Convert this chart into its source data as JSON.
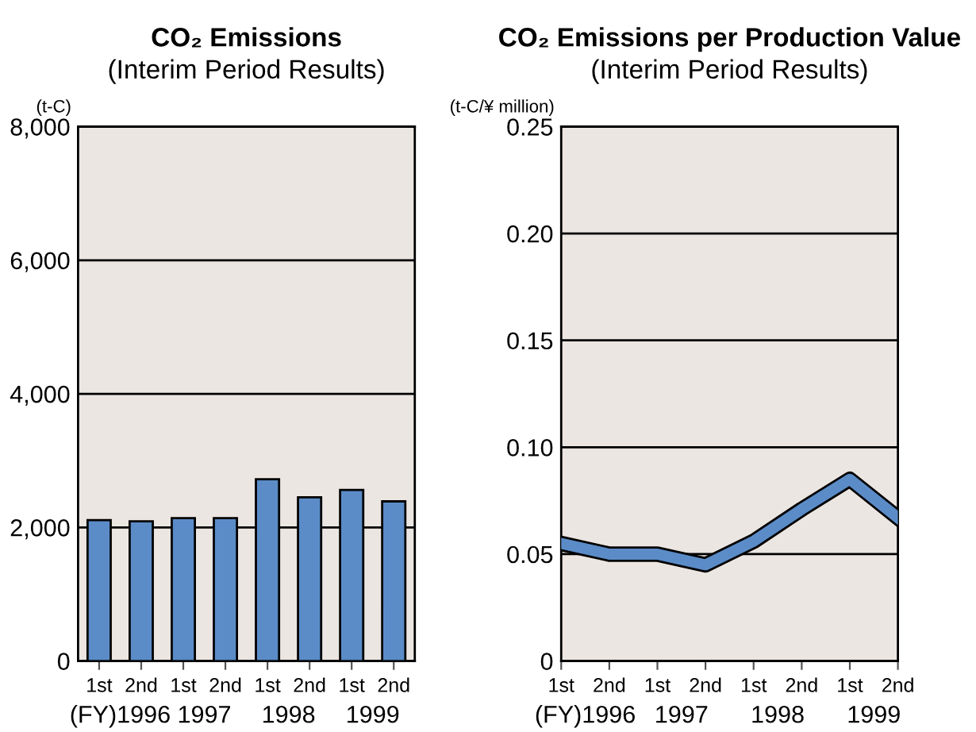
{
  "chart_data": [
    {
      "type": "bar",
      "title": "CO₂ Emissions",
      "subtitle": "(Interim Period Results)",
      "ylabel": "(t-C)",
      "categories": [
        "1st",
        "2nd",
        "1st",
        "2nd",
        "1st",
        "2nd",
        "1st",
        "2nd"
      ],
      "values": [
        2110,
        2090,
        2140,
        2140,
        2720,
        2450,
        2560,
        2390
      ],
      "color": "#5b8cc8",
      "ylim": [
        0,
        8000
      ],
      "yticks": [
        0,
        {
          "value": 2000,
          "label": "2,000"
        },
        {
          "value": 4000,
          "label": "4,000"
        },
        {
          "value": 6000,
          "label": "6,000"
        },
        {
          "value": 8000,
          "label": "8,000"
        }
      ],
      "grid": "y",
      "annotations": [
        "(FY)1996",
        "1997",
        "1998",
        "1999"
      ]
    },
    {
      "type": "line",
      "title": "CO₂ Emissions per Production Value",
      "subtitle": "(Interim Period Results)",
      "ylabel": "(t-C/¥ million)",
      "categories": [
        "1st",
        "2nd",
        "1st",
        "2nd",
        "1st",
        "2nd",
        "1st",
        "2nd"
      ],
      "values": [
        0.055,
        0.05,
        0.05,
        0.045,
        0.056,
        0.071,
        0.085,
        0.067
      ],
      "color": "#5b8cc8",
      "ylim": [
        0,
        0.25
      ],
      "yticks": [
        0,
        {
          "value": 0.05,
          "label": "0.05"
        },
        {
          "value": 0.1,
          "label": "0.10"
        },
        {
          "value": 0.15,
          "label": "0.15"
        },
        {
          "value": 0.2,
          "label": "0.20"
        },
        {
          "value": 0.25,
          "label": "0.25"
        }
      ],
      "grid": "y",
      "line_style": "solid",
      "annotations": [
        "(FY)1996",
        "1997",
        "1998",
        "1999"
      ]
    }
  ]
}
